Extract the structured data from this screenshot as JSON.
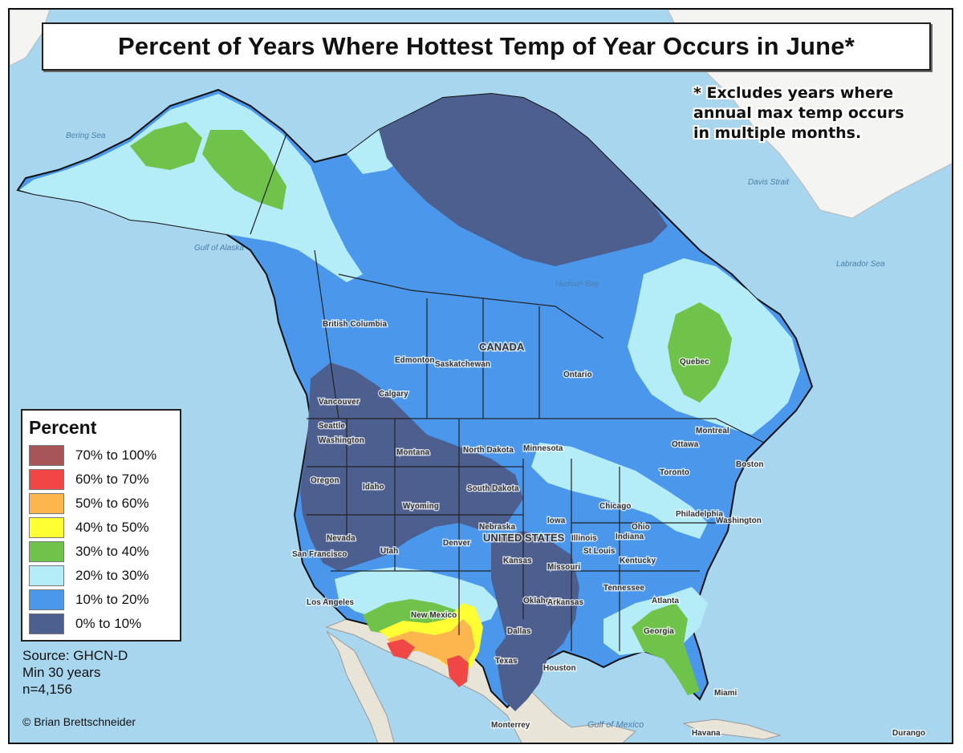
{
  "title": "Percent of Years Where Hottest Temp of Year Occurs in June*",
  "footnote": [
    "* Excludes years where",
    "annual max temp occurs",
    "in multiple months."
  ],
  "legend": {
    "title": "Percent",
    "items": [
      {
        "label": "70% to 100%",
        "color": "#a8555a"
      },
      {
        "label": "60% to 70%",
        "color": "#f04646"
      },
      {
        "label": "50% to 60%",
        "color": "#fdb64e"
      },
      {
        "label": "40% to 50%",
        "color": "#ffff33"
      },
      {
        "label": "30% to 40%",
        "color": "#6fc24a"
      },
      {
        "label": "20% to 30%",
        "color": "#b4ecf7"
      },
      {
        "label": "10% to 20%",
        "color": "#4a97ec"
      },
      {
        "label": "0% to 10%",
        "color": "#4c5f8f"
      }
    ]
  },
  "source": [
    "Source: GHCN-D",
    "Min 30 years",
    "n=4,156"
  ],
  "copyright": "© Brian Brettschneider",
  "place_labels": [
    "Bering Sea",
    "Gulf of Alaska",
    "Hudson Bay",
    "Labrador Sea",
    "Davis Strait",
    "Edmonton",
    "Calgary",
    "Vancouver",
    "Seattle",
    "Washington",
    "Oregon",
    "Idaho",
    "Montana",
    "Wyoming",
    "North Dakota",
    "South Dakota",
    "Nebraska",
    "Nevada",
    "San Francisco",
    "Utah",
    "Denver",
    "Los Angeles",
    "New Mexico",
    "Texas",
    "Oklahoma",
    "Dallas",
    "Houston",
    "Kansas",
    "Missouri",
    "Arkansas",
    "St Louis",
    "Chicago",
    "Minnesota",
    "Iowa",
    "Illinois",
    "Indiana",
    "Ohio",
    "Kentucky",
    "Tennessee",
    "Georgia",
    "Atlanta",
    "Philadelphia",
    "Boston",
    "Toronto",
    "Montreal",
    "Ottawa",
    "Ontario",
    "Quebec",
    "Saskatchewan",
    "British Columbia",
    "CANADA",
    "UNITED STATES",
    "Miami",
    "Havana",
    "Monterrey",
    "Gulf of Mexico",
    "Durango",
    "Washington"
  ]
}
